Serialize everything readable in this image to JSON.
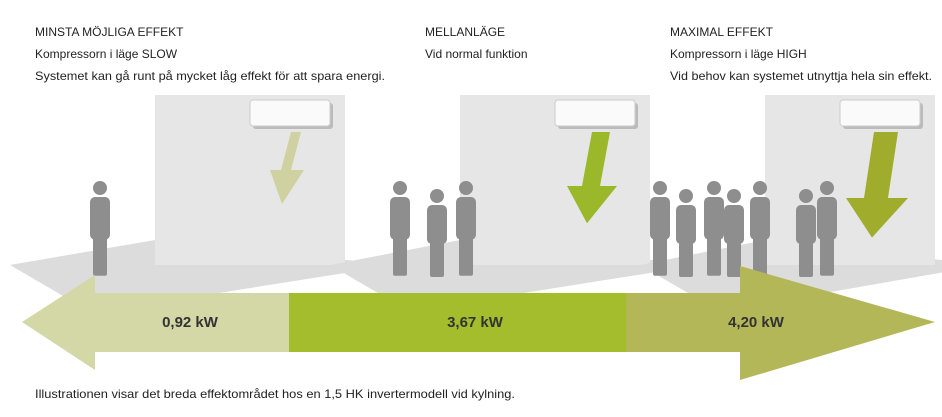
{
  "panels": [
    {
      "title": "MINSTA MÖJLIGA EFFEKT",
      "subtitle": "Kompressorn i läge SLOW",
      "description": "Systemet kan gå runt på mycket låg effekt för att spara energi.",
      "power": "0,92 kW"
    },
    {
      "title": "MELLANLÄGE",
      "subtitle": "Vid normal funktion",
      "power": "3,67 kW"
    },
    {
      "title": "MAXIMAL EFFEKT",
      "subtitle": "Kompressorn i läge HIGH",
      "description": "Vid behov kan systemet utnyttja hela sin effekt.",
      "power": "4,20 kW"
    }
  ],
  "footer": "Illustrationen visar det breda effektområdet hos en 1,5 HK invertermodell vid kylning."
}
